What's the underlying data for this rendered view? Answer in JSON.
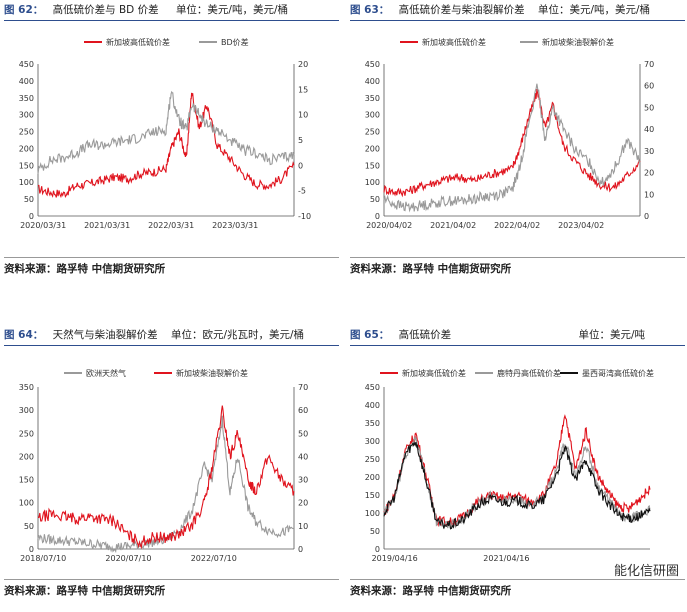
{
  "watermark": "能化信研圈",
  "source_label": "资料来源：路孚特    中信期货研究所",
  "panels": [
    {
      "label": "图 62：",
      "title": "高低硫价差与 BD 价差",
      "unit": "单位：美元/吨，美元/桶"
    },
    {
      "label": "图 63：",
      "title": "高低硫价差与柴油裂解价差",
      "unit": "单位：美元/吨，美元/桶"
    },
    {
      "label": "图 64：",
      "title": "天然气与柴油裂解价差",
      "unit": "单位：欧元/兆瓦时，美元/桶"
    },
    {
      "label": "图 65：",
      "title": "高低硫价差",
      "unit": "单位：美元/吨"
    }
  ],
  "chart_data": [
    {
      "type": "line",
      "series": [
        {
          "name": "新加坡高低硫价差",
          "axis": "left",
          "color": "#e0141e",
          "x": [
            0,
            0.05,
            0.1,
            0.15,
            0.2,
            0.25,
            0.3,
            0.35,
            0.4,
            0.45,
            0.5,
            0.52,
            0.55,
            0.58,
            0.6,
            0.63,
            0.66,
            0.7,
            0.75,
            0.8,
            0.85,
            0.9,
            0.95,
            1
          ],
          "values": [
            80,
            70,
            65,
            90,
            95,
            105,
            115,
            110,
            125,
            130,
            140,
            200,
            250,
            170,
            370,
            260,
            330,
            210,
            170,
            125,
            95,
            90,
            110,
            150
          ]
        },
        {
          "name": "BD价差",
          "axis": "right",
          "color": "#9a9a9a",
          "x": [
            0,
            0.05,
            0.1,
            0.15,
            0.2,
            0.25,
            0.3,
            0.35,
            0.4,
            0.45,
            0.5,
            0.52,
            0.55,
            0.58,
            0.6,
            0.63,
            0.66,
            0.7,
            0.75,
            0.8,
            0.85,
            0.9,
            0.95,
            1
          ],
          "values": [
            -1,
            1,
            1.5,
            2.5,
            4,
            4,
            4.5,
            5,
            5.5,
            6.5,
            7,
            14.5,
            9,
            7,
            12,
            10,
            8,
            7,
            5,
            3,
            2.5,
            1,
            1.5,
            2
          ]
        }
      ],
      "x_ticks": [
        "2020/03/31",
        "2021/03/31",
        "2022/03/31",
        "2023/03/31"
      ],
      "ylim_left": [
        0,
        450
      ],
      "yticks_left": [
        0,
        50,
        100,
        150,
        200,
        250,
        300,
        350,
        400,
        450
      ],
      "ylim_right": [
        -10,
        20
      ],
      "yticks_right": [
        -10,
        -5,
        0,
        5,
        10,
        15,
        20
      ]
    },
    {
      "type": "line",
      "series": [
        {
          "name": "新加坡高低硫价差",
          "axis": "left",
          "color": "#e0141e",
          "x": [
            0,
            0.05,
            0.1,
            0.15,
            0.2,
            0.25,
            0.3,
            0.35,
            0.4,
            0.45,
            0.5,
            0.53,
            0.56,
            0.6,
            0.63,
            0.66,
            0.7,
            0.75,
            0.8,
            0.85,
            0.9,
            0.95,
            1
          ],
          "values": [
            80,
            70,
            75,
            90,
            100,
            110,
            115,
            105,
            120,
            130,
            140,
            200,
            280,
            370,
            260,
            330,
            210,
            160,
            120,
            90,
            85,
            120,
            160
          ]
        },
        {
          "name": "新加坡柴油裂解价差",
          "axis": "right",
          "color": "#9a9a9a",
          "x": [
            0,
            0.05,
            0.1,
            0.15,
            0.2,
            0.25,
            0.3,
            0.35,
            0.4,
            0.45,
            0.5,
            0.53,
            0.56,
            0.6,
            0.63,
            0.66,
            0.7,
            0.75,
            0.8,
            0.85,
            0.9,
            0.95,
            1
          ],
          "values": [
            8,
            5,
            4,
            5,
            6,
            7,
            7,
            8,
            9,
            10,
            12,
            22,
            40,
            60,
            35,
            50,
            40,
            30,
            25,
            15,
            22,
            35,
            25
          ]
        }
      ],
      "x_ticks": [
        "2020/04/02",
        "2021/04/02",
        "2022/04/02",
        "2023/04/02"
      ],
      "ylim_left": [
        0,
        450
      ],
      "yticks_left": [
        0,
        50,
        100,
        150,
        200,
        250,
        300,
        350,
        400,
        450
      ],
      "ylim_right": [
        0,
        70
      ],
      "yticks_right": [
        0,
        10,
        20,
        30,
        40,
        50,
        60,
        70
      ]
    },
    {
      "type": "line",
      "series": [
        {
          "name": "欧洲天然气",
          "axis": "left",
          "color": "#9a9a9a",
          "x": [
            0,
            0.05,
            0.1,
            0.15,
            0.2,
            0.25,
            0.3,
            0.35,
            0.4,
            0.45,
            0.5,
            0.55,
            0.6,
            0.65,
            0.68,
            0.72,
            0.75,
            0.78,
            0.82,
            0.85,
            0.9,
            0.95,
            1
          ],
          "values": [
            25,
            20,
            18,
            15,
            12,
            8,
            5,
            6,
            10,
            15,
            20,
            40,
            80,
            180,
            150,
            280,
            120,
            200,
            90,
            60,
            40,
            35,
            45
          ]
        },
        {
          "name": "新加坡柴油裂解价差",
          "axis": "right",
          "color": "#e0141e",
          "x": [
            0,
            0.05,
            0.1,
            0.15,
            0.2,
            0.25,
            0.3,
            0.35,
            0.4,
            0.45,
            0.5,
            0.55,
            0.6,
            0.65,
            0.68,
            0.72,
            0.75,
            0.78,
            0.82,
            0.85,
            0.9,
            0.95,
            1
          ],
          "values": [
            13,
            15,
            14,
            13,
            14,
            13,
            12,
            6,
            3,
            5,
            5,
            6,
            10,
            20,
            35,
            60,
            40,
            50,
            30,
            25,
            40,
            30,
            25
          ]
        }
      ],
      "x_ticks": [
        "2018/07/10",
        "2020/07/10",
        "2022/07/10"
      ],
      "ylim_left": [
        0,
        350
      ],
      "yticks_left": [
        0,
        50,
        100,
        150,
        200,
        250,
        300,
        350
      ],
      "ylim_right": [
        0,
        70
      ],
      "yticks_right": [
        0,
        10,
        20,
        30,
        40,
        50,
        60,
        70
      ]
    },
    {
      "type": "line",
      "series": [
        {
          "name": "新加坡高低硫价差",
          "axis": "left",
          "color": "#e0141e",
          "x": [
            0,
            0.04,
            0.08,
            0.12,
            0.16,
            0.2,
            0.25,
            0.3,
            0.35,
            0.4,
            0.45,
            0.5,
            0.55,
            0.6,
            0.65,
            0.68,
            0.72,
            0.76,
            0.8,
            0.84,
            0.88,
            0.92,
            0.96,
            1
          ],
          "values": [
            100,
            150,
            270,
            320,
            200,
            80,
            75,
            90,
            130,
            150,
            140,
            150,
            130,
            150,
            240,
            380,
            220,
            330,
            210,
            160,
            120,
            110,
            140,
            165
          ]
        },
        {
          "name": "鹿特丹高低硫价差",
          "axis": "left",
          "color": "#9a9a9a",
          "x": [
            0,
            0.04,
            0.08,
            0.12,
            0.16,
            0.2,
            0.25,
            0.3,
            0.35,
            0.4,
            0.45,
            0.5,
            0.55,
            0.6,
            0.65,
            0.68,
            0.72,
            0.76,
            0.8,
            0.84,
            0.88,
            0.92,
            0.96,
            1
          ],
          "values": [
            100,
            140,
            260,
            310,
            190,
            70,
            68,
            85,
            125,
            145,
            135,
            140,
            120,
            140,
            220,
            300,
            200,
            290,
            180,
            140,
            100,
            80,
            95,
            110
          ]
        },
        {
          "name": "墨西哥湾高低硫价差",
          "axis": "left",
          "color": "#111111",
          "x": [
            0,
            0.04,
            0.08,
            0.12,
            0.16,
            0.2,
            0.25,
            0.3,
            0.35,
            0.4,
            0.45,
            0.5,
            0.55,
            0.6,
            0.65,
            0.68,
            0.72,
            0.76,
            0.8,
            0.84,
            0.88,
            0.92,
            0.96,
            1
          ],
          "values": [
            100,
            145,
            265,
            300,
            185,
            72,
            65,
            82,
            120,
            140,
            130,
            135,
            118,
            135,
            210,
            280,
            190,
            250,
            170,
            130,
            95,
            85,
            90,
            105
          ]
        }
      ],
      "x_ticks": [
        "2019/04/16",
        "2021/04/16"
      ],
      "ylim_left": [
        0,
        450
      ],
      "yticks_left": [
        0,
        50,
        100,
        150,
        200,
        250,
        300,
        350,
        400,
        450
      ]
    }
  ]
}
